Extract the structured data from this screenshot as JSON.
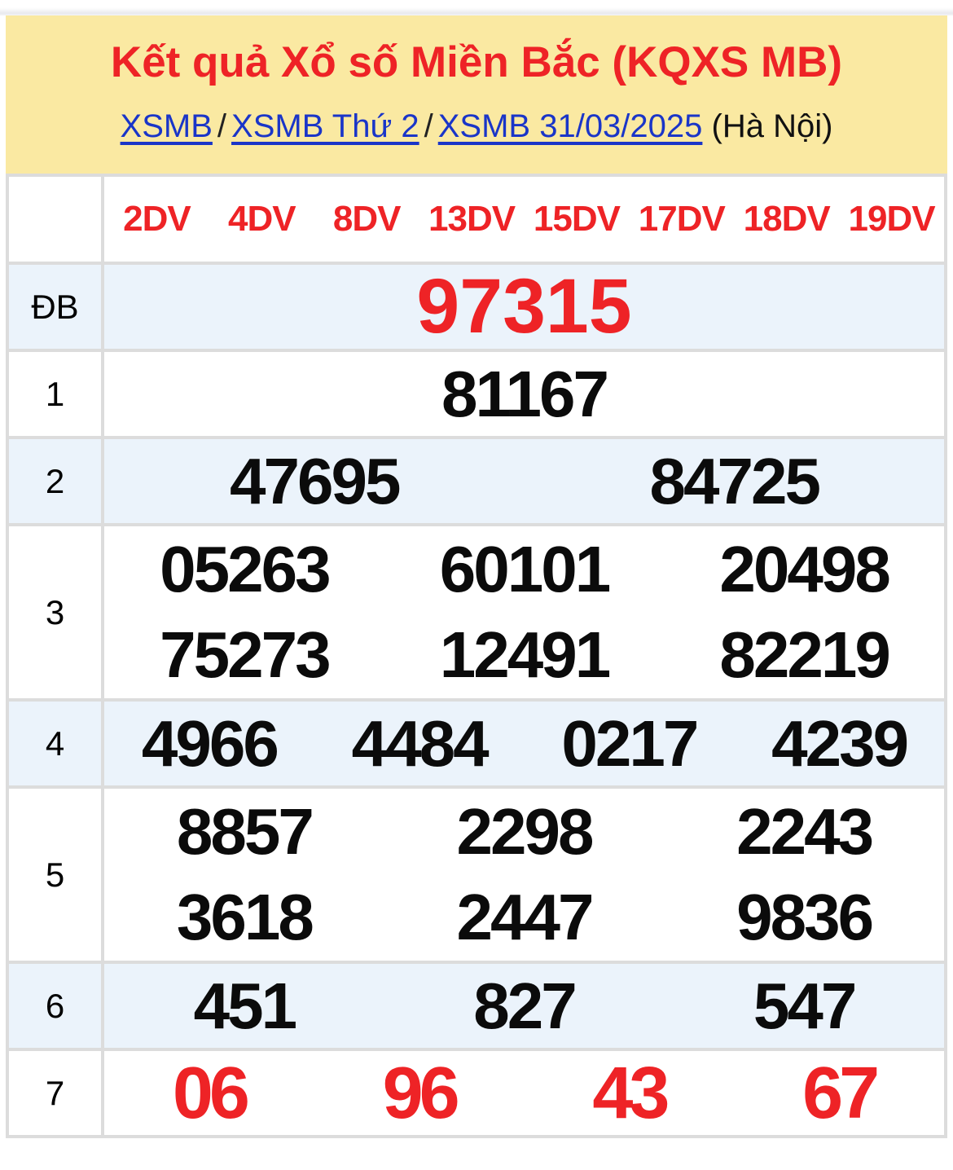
{
  "colors": {
    "accent_red": "#ee2326",
    "link_blue": "#1a35c8",
    "banner_yellow": "#fae9a2",
    "alt_row_blue": "#ebf3fb",
    "border_gray": "#dcdcdc",
    "number_black": "#0b0b0b"
  },
  "header": {
    "title": "Kết quả Xổ số Miền Bắc (KQXS MB)",
    "breadcrumb": {
      "link1": "XSMB",
      "link2": "XSMB Thứ 2",
      "link3": "XSMB 31/03/2025",
      "separator": "/",
      "location": "(Hà Nội)"
    }
  },
  "table": {
    "digit_view_tabs": [
      "2DV",
      "4DV",
      "8DV",
      "13DV",
      "15DV",
      "17DV",
      "18DV",
      "19DV"
    ],
    "rows": [
      {
        "id": "db",
        "label": "ĐB",
        "style": "special",
        "per_line": 1,
        "lines": 1,
        "alt": true,
        "values": [
          "97315"
        ]
      },
      {
        "id": "1",
        "label": "1",
        "style": "black",
        "per_line": 1,
        "lines": 1,
        "alt": false,
        "values": [
          "81167"
        ]
      },
      {
        "id": "2",
        "label": "2",
        "style": "black",
        "per_line": 2,
        "lines": 1,
        "alt": true,
        "values": [
          "47695",
          "84725"
        ]
      },
      {
        "id": "3",
        "label": "3",
        "style": "black",
        "per_line": 3,
        "lines": 2,
        "alt": false,
        "values": [
          "05263",
          "60101",
          "20498",
          "75273",
          "12491",
          "82219"
        ]
      },
      {
        "id": "4",
        "label": "4",
        "style": "black",
        "per_line": 4,
        "lines": 1,
        "alt": true,
        "values": [
          "4966",
          "4484",
          "0217",
          "4239"
        ]
      },
      {
        "id": "5",
        "label": "5",
        "style": "black",
        "per_line": 3,
        "lines": 2,
        "alt": false,
        "values": [
          "8857",
          "2298",
          "2243",
          "3618",
          "2447",
          "9836"
        ]
      },
      {
        "id": "6",
        "label": "6",
        "style": "black",
        "per_line": 3,
        "lines": 1,
        "alt": true,
        "values": [
          "451",
          "827",
          "547"
        ]
      },
      {
        "id": "7",
        "label": "7",
        "style": "red",
        "per_line": 4,
        "lines": 1,
        "alt": false,
        "values": [
          "06",
          "96",
          "43",
          "67"
        ]
      }
    ]
  }
}
